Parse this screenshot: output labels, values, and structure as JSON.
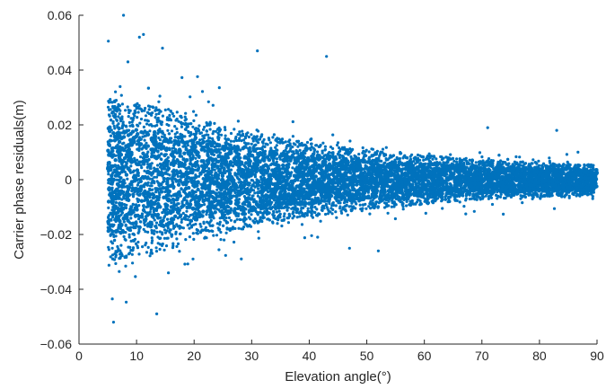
{
  "chart_data": {
    "type": "scatter",
    "title": "",
    "xlabel": "Elevation angle(°)",
    "ylabel": "Carrier phase residuals(m)",
    "xlim": [
      0,
      90
    ],
    "ylim": [
      -0.06,
      0.06
    ],
    "xticks": [
      0,
      10,
      20,
      30,
      40,
      50,
      60,
      70,
      80,
      90
    ],
    "xtick_labels": [
      "0",
      "10",
      "20",
      "30",
      "40",
      "50",
      "60",
      "70",
      "80",
      "90"
    ],
    "yticks": [
      -0.06,
      -0.04,
      -0.02,
      0,
      0.02,
      0.04,
      0.06
    ],
    "ytick_labels": [
      "−0.06",
      "−0.04",
      "−0.02",
      "0",
      "0.02",
      "0.04",
      "0.06"
    ],
    "grid": false,
    "legend": "none",
    "marker_color": "#0072BD",
    "series": [
      {
        "x_range": [
          5,
          90
        ],
        "spread_envelope": [
          {
            "x": 5,
            "y": 0.033
          },
          {
            "x": 10,
            "y": 0.031
          },
          {
            "x": 15,
            "y": 0.029
          },
          {
            "x": 20,
            "y": 0.025
          },
          {
            "x": 30,
            "y": 0.019
          },
          {
            "x": 40,
            "y": 0.015
          },
          {
            "x": 50,
            "y": 0.012
          },
          {
            "x": 60,
            "y": 0.01
          },
          {
            "x": 70,
            "y": 0.008
          },
          {
            "x": 80,
            "y": 0.007
          },
          {
            "x": 90,
            "y": 0.006
          }
        ],
        "outliers": [
          {
            "x": 10.5,
            "y": 0.052
          },
          {
            "x": 11.2,
            "y": 0.053
          },
          {
            "x": 14.5,
            "y": 0.048
          },
          {
            "x": 31.0,
            "y": 0.047
          },
          {
            "x": 43.0,
            "y": 0.045
          },
          {
            "x": 8.5,
            "y": 0.043
          },
          {
            "x": 6.0,
            "y": -0.052
          },
          {
            "x": 13.5,
            "y": -0.049
          },
          {
            "x": 52.0,
            "y": -0.026
          },
          {
            "x": 47.0,
            "y": -0.025
          },
          {
            "x": 71.0,
            "y": 0.019
          },
          {
            "x": 83.0,
            "y": 0.018
          }
        ]
      }
    ]
  }
}
